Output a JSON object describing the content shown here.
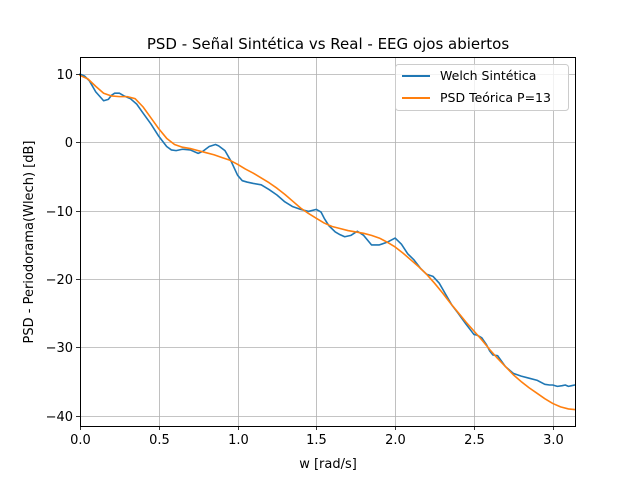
{
  "chart_data": {
    "type": "line",
    "title": "PSD - Señal Sintética vs Real - EEG ojos abiertos",
    "xlabel": "w [rad/s]",
    "ylabel": "PSD - Periodorama(Wlech) [dB]",
    "xlim": [
      0,
      3.1416
    ],
    "ylim": [
      -41.5,
      12.5
    ],
    "xticks": [
      0.0,
      0.5,
      1.0,
      1.5,
      2.0,
      2.5,
      3.0
    ],
    "xtick_labels": [
      "0.0",
      "0.5",
      "1.0",
      "1.5",
      "2.0",
      "2.5",
      "3.0"
    ],
    "yticks": [
      10,
      0,
      -10,
      -20,
      -30,
      -40
    ],
    "ytick_labels": [
      "10",
      "0",
      "−10",
      "−20",
      "−30",
      "−40"
    ],
    "grid": true,
    "legend_position": "top-right",
    "series": [
      {
        "name": "Welch Sintética",
        "color": "#1f77b4",
        "x": [
          0,
          0.03,
          0.06,
          0.1,
          0.15,
          0.18,
          0.2,
          0.22,
          0.25,
          0.28,
          0.32,
          0.36,
          0.4,
          0.45,
          0.5,
          0.55,
          0.58,
          0.61,
          0.65,
          0.7,
          0.75,
          0.78,
          0.82,
          0.86,
          0.88,
          0.92,
          0.96,
          1.0,
          1.03,
          1.06,
          1.1,
          1.15,
          1.2,
          1.25,
          1.3,
          1.35,
          1.4,
          1.45,
          1.5,
          1.53,
          1.55,
          1.58,
          1.62,
          1.65,
          1.68,
          1.72,
          1.76,
          1.8,
          1.85,
          1.9,
          1.95,
          2.0,
          2.04,
          2.08,
          2.12,
          2.16,
          2.2,
          2.24,
          2.28,
          2.32,
          2.36,
          2.4,
          2.45,
          2.5,
          2.52,
          2.55,
          2.58,
          2.6,
          2.62,
          2.65,
          2.7,
          2.75,
          2.8,
          2.85,
          2.9,
          2.95,
          2.98,
          3.0,
          3.03,
          3.06,
          3.08,
          3.1,
          3.12,
          3.14
        ],
        "y": [
          10,
          9.7,
          9.0,
          7.4,
          6.1,
          6.3,
          6.9,
          7.2,
          7.2,
          6.8,
          6.4,
          5.6,
          4.3,
          2.7,
          0.9,
          -0.6,
          -1.1,
          -1.2,
          -1.0,
          -1.1,
          -1.6,
          -1.3,
          -0.6,
          -0.3,
          -0.5,
          -1.2,
          -2.8,
          -4.8,
          -5.6,
          -5.8,
          -6.0,
          -6.2,
          -6.9,
          -7.7,
          -8.7,
          -9.4,
          -9.8,
          -10.1,
          -9.8,
          -10.2,
          -11.1,
          -12.2,
          -13.1,
          -13.5,
          -13.8,
          -13.6,
          -13.0,
          -13.6,
          -15.0,
          -15.0,
          -14.6,
          -14.0,
          -14.9,
          -16.3,
          -17.2,
          -18.4,
          -19.3,
          -19.6,
          -20.6,
          -22.2,
          -23.8,
          -25.0,
          -26.6,
          -28.1,
          -28.2,
          -28.6,
          -29.6,
          -30.5,
          -31.1,
          -31.2,
          -32.8,
          -33.8,
          -34.2,
          -34.5,
          -34.8,
          -35.4,
          -35.5,
          -35.5,
          -35.7,
          -35.6,
          -35.5,
          -35.7,
          -35.6,
          -35.5
        ]
      },
      {
        "name": "PSD Teórica P=13",
        "color": "#ff7f0e",
        "x": [
          0,
          0.05,
          0.1,
          0.15,
          0.2,
          0.25,
          0.3,
          0.35,
          0.4,
          0.45,
          0.5,
          0.55,
          0.6,
          0.65,
          0.7,
          0.75,
          0.8,
          0.85,
          0.9,
          0.95,
          1.0,
          1.05,
          1.1,
          1.15,
          1.2,
          1.25,
          1.3,
          1.35,
          1.4,
          1.45,
          1.5,
          1.55,
          1.6,
          1.65,
          1.7,
          1.75,
          1.8,
          1.85,
          1.9,
          1.95,
          2.0,
          2.05,
          2.1,
          2.15,
          2.2,
          2.25,
          2.3,
          2.35,
          2.4,
          2.45,
          2.5,
          2.55,
          2.6,
          2.65,
          2.7,
          2.75,
          2.8,
          2.85,
          2.9,
          2.95,
          3.0,
          3.05,
          3.1,
          3.14
        ],
        "y": [
          9.8,
          9.3,
          8.2,
          7.2,
          6.8,
          6.7,
          6.7,
          6.4,
          5.2,
          3.6,
          2.0,
          0.6,
          -0.3,
          -0.7,
          -0.9,
          -1.2,
          -1.5,
          -1.8,
          -2.2,
          -2.6,
          -3.2,
          -3.9,
          -4.5,
          -5.2,
          -5.9,
          -6.7,
          -7.6,
          -8.6,
          -9.6,
          -10.4,
          -11.1,
          -11.8,
          -12.3,
          -12.6,
          -12.9,
          -13.1,
          -13.3,
          -13.6,
          -14.0,
          -14.6,
          -15.3,
          -16.2,
          -17.2,
          -18.2,
          -19.3,
          -20.6,
          -22.0,
          -23.5,
          -24.9,
          -26.3,
          -27.6,
          -28.9,
          -30.3,
          -31.6,
          -32.8,
          -34.0,
          -35.0,
          -35.9,
          -36.7,
          -37.5,
          -38.2,
          -38.7,
          -39.0,
          -39.1
        ]
      }
    ]
  }
}
